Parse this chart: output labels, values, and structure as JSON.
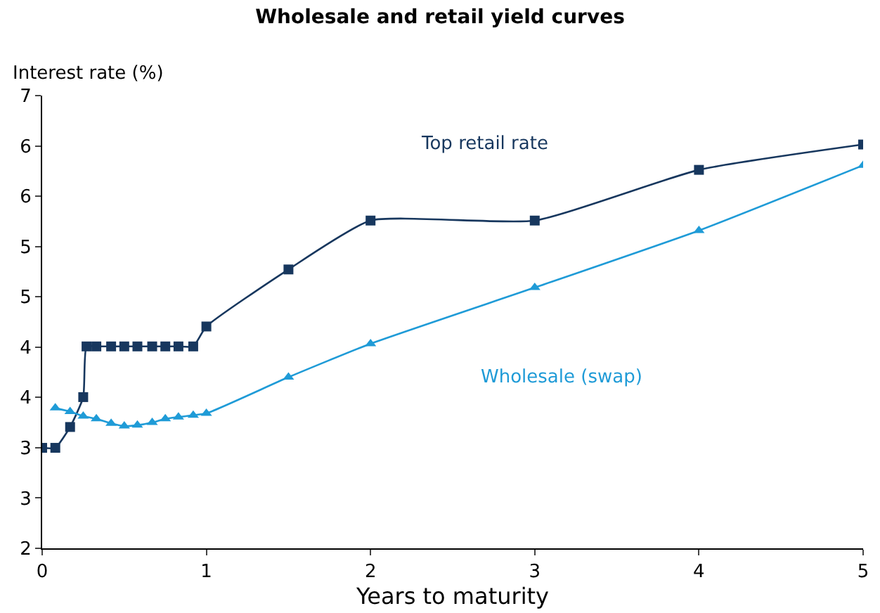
{
  "chart_data": {
    "type": "line",
    "title": "Wholesale and retail yield curves",
    "ylabel": "Interest rate (%)",
    "xlabel": "Years to maturity",
    "xlim": [
      0,
      5
    ],
    "xticks": [
      0,
      1,
      2,
      3,
      4,
      5
    ],
    "ylim": [
      2,
      7
    ],
    "yticks": [
      2,
      {
        "value": 2.556,
        "label": "3"
      },
      {
        "value": 3.111,
        "label": "3"
      },
      {
        "value": 3.667,
        "label": "4"
      },
      {
        "value": 4.222,
        "label": "4"
      },
      {
        "value": 4.778,
        "label": "5"
      },
      {
        "value": 5.333,
        "label": "5"
      },
      {
        "value": 5.889,
        "label": "6"
      },
      {
        "value": 6.444,
        "label": "6"
      },
      7
    ],
    "grid": false,
    "legend": false,
    "line_style": "solid",
    "series": [
      {
        "name": "Top retail rate",
        "color": "#17375e",
        "marker": "square",
        "x": [
          0,
          0.08,
          0.17,
          0.25,
          0.27,
          0.33,
          0.42,
          0.5,
          0.58,
          0.67,
          0.75,
          0.83,
          0.92,
          1,
          1.5,
          2,
          3,
          4,
          5
        ],
        "values": [
          3.11,
          3.11,
          3.34,
          3.67,
          4.23,
          4.23,
          4.23,
          4.23,
          4.23,
          4.23,
          4.23,
          4.23,
          4.23,
          4.45,
          5.08,
          5.62,
          5.62,
          6.18,
          6.46
        ]
      },
      {
        "name": "Wholesale (swap)",
        "color": "#1f9bd7",
        "marker": "triangle",
        "x": [
          0.08,
          0.17,
          0.25,
          0.33,
          0.42,
          0.5,
          0.58,
          0.67,
          0.75,
          0.83,
          0.92,
          1,
          1.5,
          2,
          3,
          4,
          5
        ],
        "values": [
          3.55,
          3.51,
          3.46,
          3.43,
          3.38,
          3.35,
          3.36,
          3.39,
          3.43,
          3.45,
          3.47,
          3.49,
          3.89,
          4.26,
          4.88,
          5.51,
          6.23
        ]
      }
    ]
  }
}
